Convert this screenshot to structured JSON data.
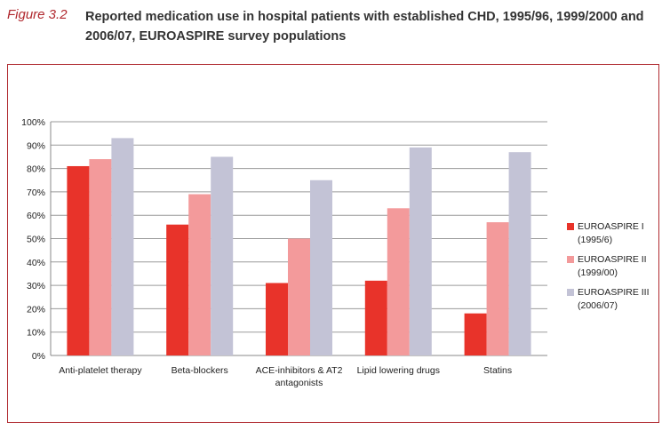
{
  "header": {
    "figure_label": "Figure 3.2",
    "caption": "Reported medication use in hospital patients with established CHD, 1995/96, 1999/2000 and 2006/07, EUROASPIRE survey populations"
  },
  "colors": {
    "accent": "#b0282e",
    "series": [
      "#e8332a",
      "#f39a9b",
      "#c3c3d6"
    ]
  },
  "chart_data": {
    "type": "bar",
    "title": "",
    "xlabel": "",
    "ylabel": "",
    "categories": [
      [
        "Anti-platelet therapy"
      ],
      [
        "Beta-blockers"
      ],
      [
        "ACE-inhibitors & AT2",
        "antagonists"
      ],
      [
        "Lipid lowering drugs"
      ],
      [
        "Statins"
      ]
    ],
    "yticks": [
      "0%",
      "10%",
      "20%",
      "30%",
      "40%",
      "50%",
      "60%",
      "70%",
      "80%",
      "90%",
      "100%"
    ],
    "ylim": [
      0,
      100
    ],
    "grid": true,
    "legend_position": "right",
    "series": [
      {
        "name": [
          "EUROASPIRE I",
          "(1995/6)"
        ],
        "values": [
          81,
          56,
          31,
          32,
          18
        ]
      },
      {
        "name": [
          "EUROASPIRE II",
          "(1999/00)"
        ],
        "values": [
          84,
          69,
          50,
          63,
          57
        ]
      },
      {
        "name": [
          "EUROASPIRE III",
          "(2006/07)"
        ],
        "values": [
          93,
          85,
          75,
          89,
          87
        ]
      }
    ]
  }
}
